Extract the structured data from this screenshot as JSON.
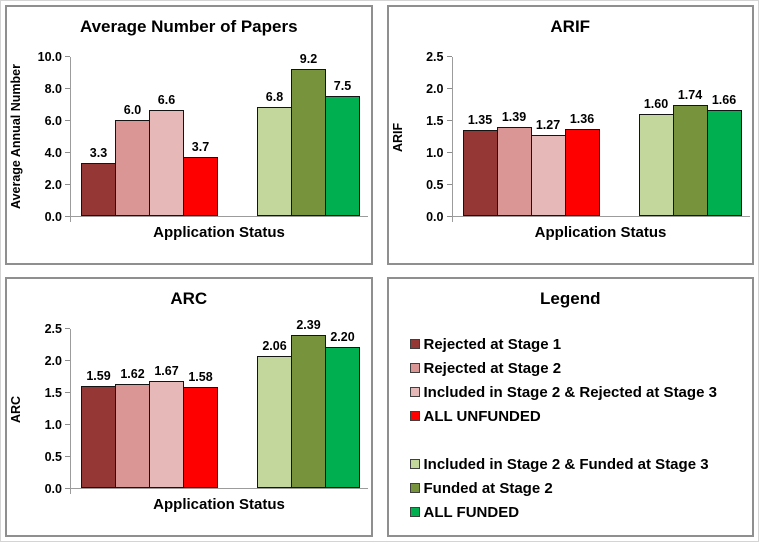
{
  "app": {
    "background": "#FFFFFF",
    "panel_border": "#8F8F8F"
  },
  "series_colors": [
    "#953735",
    "#D99694",
    "#E6B8B7",
    "#FF0000",
    "#C3D69B",
    "#77933C",
    "#00B050"
  ],
  "axis": {
    "line_color": "#9C9C9C",
    "tick_color": "#8C8C8C"
  },
  "chart_data": [
    {
      "type": "bar",
      "title": "Average Number of Papers",
      "xlabel": "Application Status",
      "ylabel": "Average Annual Number",
      "ylim": [
        0,
        10
      ],
      "yticks": [
        "0.0",
        "2.0",
        "4.0",
        "6.0",
        "8.0",
        "10.0"
      ],
      "grid": false,
      "legend_position": "separate-panel",
      "categories": [
        "Rejected at Stage 1",
        "Rejected at Stage 2",
        "Included in Stage 2 & Rejected at Stage 3",
        "ALL UNFUNDED",
        "Included in Stage 2 & Funded at Stage 3",
        "Funded at Stage 2",
        "ALL FUNDED"
      ],
      "values": [
        3.3,
        6.0,
        6.6,
        3.7,
        6.8,
        9.2,
        7.5
      ],
      "value_labels": [
        "3.3",
        "6.0",
        "6.6",
        "3.7",
        "6.8",
        "9.2",
        "7.5"
      ],
      "group_split": 4
    },
    {
      "type": "bar",
      "title": "ARIF",
      "xlabel": "Application Status",
      "ylabel": "ARIF",
      "ylim": [
        0,
        2.5
      ],
      "yticks": [
        "0.0",
        "0.5",
        "1.0",
        "1.5",
        "2.0",
        "2.5"
      ],
      "grid": false,
      "legend_position": "separate-panel",
      "categories": [
        "Rejected at Stage 1",
        "Rejected at Stage 2",
        "Included in Stage 2 & Rejected at Stage 3",
        "ALL UNFUNDED",
        "Included in Stage 2 & Funded at Stage 3",
        "Funded at Stage 2",
        "ALL FUNDED"
      ],
      "values": [
        1.35,
        1.39,
        1.27,
        1.36,
        1.6,
        1.74,
        1.66
      ],
      "value_labels": [
        "1.35",
        "1.39",
        "1.27",
        "1.36",
        "1.60",
        "1.74",
        "1.66"
      ],
      "group_split": 4
    },
    {
      "type": "bar",
      "title": "ARC",
      "xlabel": "Application Status",
      "ylabel": "ARC",
      "ylim": [
        0,
        2.5
      ],
      "yticks": [
        "0.0",
        "0.5",
        "1.0",
        "1.5",
        "2.0",
        "2.5"
      ],
      "grid": false,
      "legend_position": "separate-panel",
      "categories": [
        "Rejected at Stage 1",
        "Rejected at Stage 2",
        "Included in Stage 2 & Rejected at Stage 3",
        "ALL UNFUNDED",
        "Included in Stage 2 & Funded at Stage 3",
        "Funded at Stage 2",
        "ALL FUNDED"
      ],
      "values": [
        1.59,
        1.62,
        1.67,
        1.58,
        2.06,
        2.39,
        2.2
      ],
      "value_labels": [
        "1.59",
        "1.62",
        "1.67",
        "1.58",
        "2.06",
        "2.39",
        "2.20"
      ],
      "group_split": 4
    }
  ],
  "legend": {
    "title": "Legend",
    "groups": [
      {
        "name": "unfunded",
        "items": [
          {
            "label": "Rejected at Stage 1",
            "color": "#953735"
          },
          {
            "label": "Rejected at Stage 2",
            "color": "#D99694"
          },
          {
            "label": "Included in Stage 2 & Rejected at Stage 3",
            "color": "#E6B8B7"
          },
          {
            "label": "ALL UNFUNDED",
            "color": "#FF0000"
          }
        ]
      },
      {
        "name": "funded",
        "items": [
          {
            "label": "Included in Stage 2 & Funded at Stage 3",
            "color": "#C3D69B"
          },
          {
            "label": "Funded at Stage 2",
            "color": "#77933C"
          },
          {
            "label": "ALL FUNDED",
            "color": "#00B050"
          }
        ]
      }
    ]
  }
}
